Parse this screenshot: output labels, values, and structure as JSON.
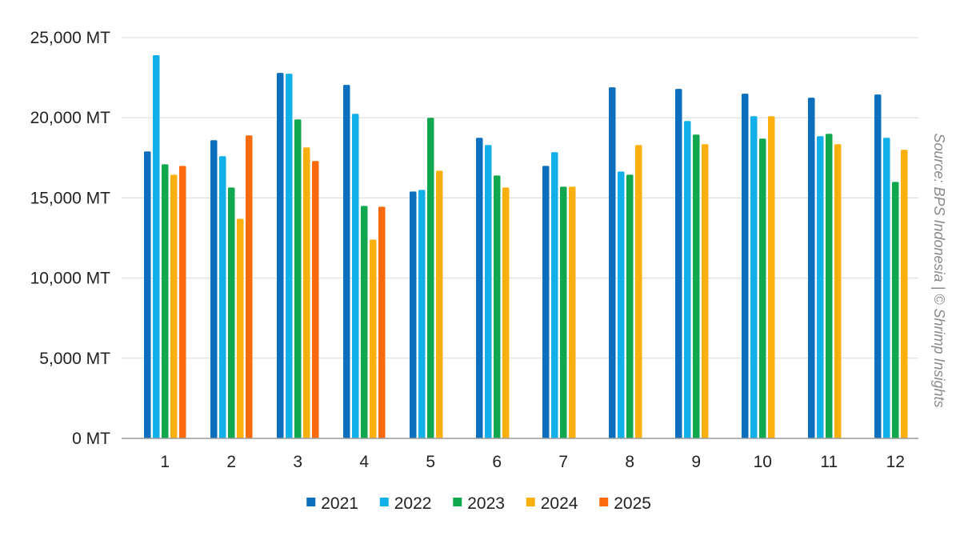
{
  "chart_data": {
    "type": "bar",
    "categories": [
      "1",
      "2",
      "3",
      "4",
      "5",
      "6",
      "7",
      "8",
      "9",
      "10",
      "11",
      "12"
    ],
    "series": [
      {
        "name": "2021",
        "color": "#0b6fbe",
        "values": [
          17900,
          18600,
          22800,
          22050,
          15400,
          18750,
          17000,
          21900,
          21800,
          21500,
          21250,
          21450
        ]
      },
      {
        "name": "2022",
        "color": "#12b0ea",
        "values": [
          23900,
          17600,
          22750,
          20250,
          15500,
          18300,
          17850,
          16650,
          19800,
          20100,
          18850,
          18750
        ]
      },
      {
        "name": "2023",
        "color": "#10a84e",
        "values": [
          17100,
          15650,
          19900,
          14500,
          20000,
          16400,
          15700,
          16450,
          18950,
          18700,
          19000,
          16000
        ]
      },
      {
        "name": "2024",
        "color": "#fcb010",
        "values": [
          16450,
          13700,
          18150,
          12400,
          16700,
          15650,
          15700,
          18300,
          18350,
          20100,
          18350,
          18000
        ]
      },
      {
        "name": "2025",
        "color": "#fa6a0a",
        "values": [
          17000,
          18900,
          17300,
          14450,
          null,
          null,
          null,
          null,
          null,
          null,
          null,
          null
        ]
      }
    ],
    "ylim": [
      0,
      25000
    ],
    "yticks": [
      "0 MT",
      "5,000 MT",
      "10,000 MT",
      "15,000 MT",
      "20,000 MT",
      "25,000 MT"
    ],
    "ytick_values": [
      0,
      5000,
      10000,
      15000,
      20000,
      25000
    ],
    "grid": true,
    "legend_position": "bottom",
    "source_text": "Source: BPS Indonesia | © Shrimp Insights"
  }
}
